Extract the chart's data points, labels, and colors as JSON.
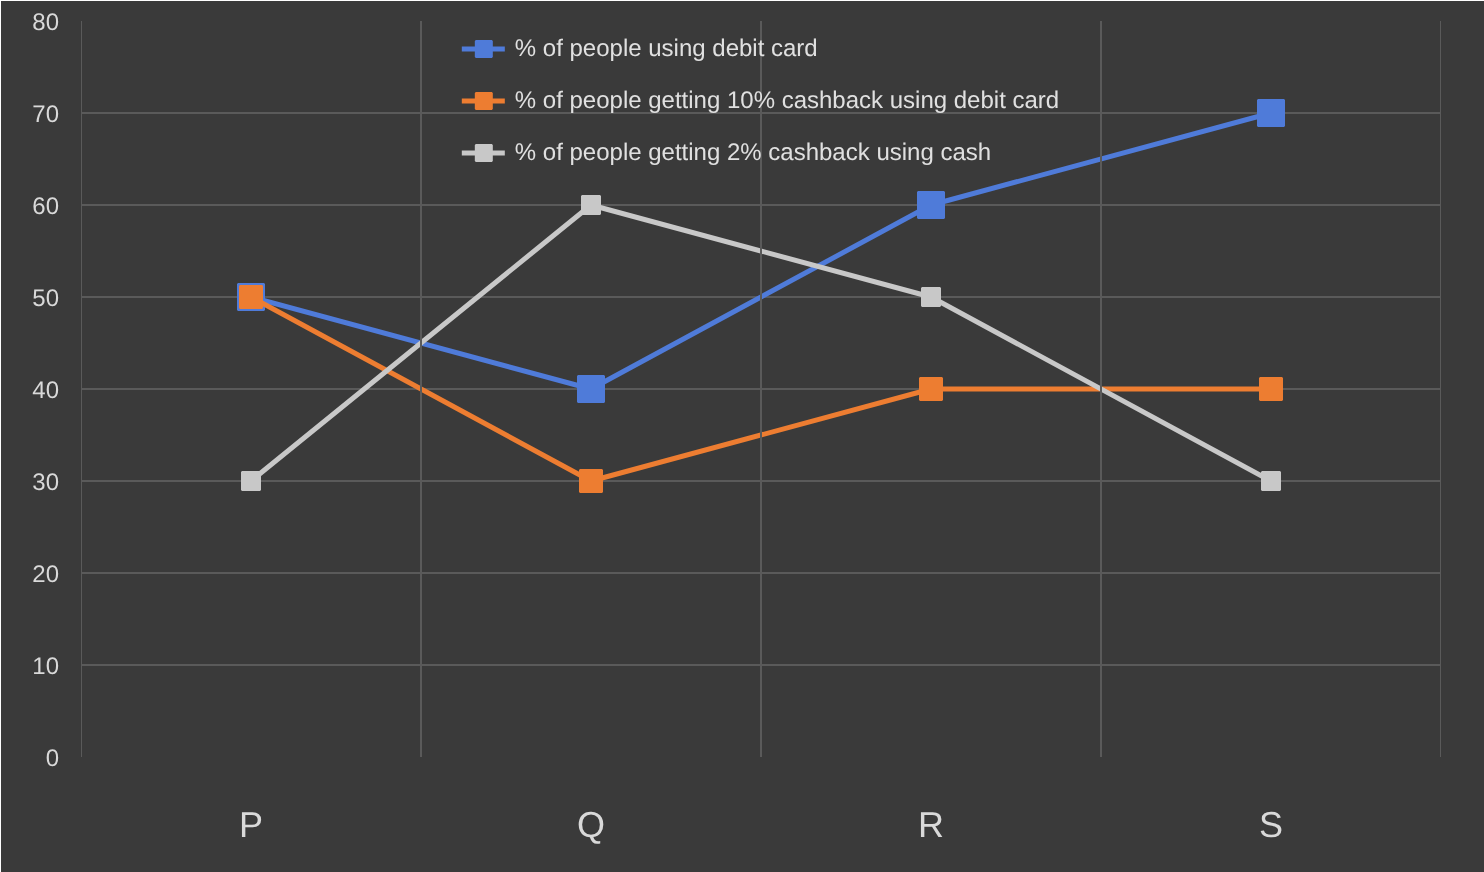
{
  "chart_data": {
    "type": "line",
    "categories": [
      "P",
      "Q",
      "R",
      "S"
    ],
    "series": [
      {
        "name": "% of people using debit card",
        "color": "#4f7bd9",
        "values": [
          50,
          40,
          60,
          70
        ]
      },
      {
        "name": "% of people getting 10% cashback using debit card",
        "color": "#ed7d31",
        "values": [
          50,
          30,
          40,
          40
        ]
      },
      {
        "name": "% of people getting 2% cashback using cash",
        "color": "#c8c8c8",
        "values": [
          30,
          60,
          50,
          30
        ]
      }
    ],
    "ylim": [
      0,
      80
    ],
    "yticks": [
      0,
      10,
      20,
      30,
      40,
      50,
      60,
      70,
      80
    ],
    "grid": true,
    "legend": "top",
    "marker": "square",
    "line_style": "solid"
  }
}
